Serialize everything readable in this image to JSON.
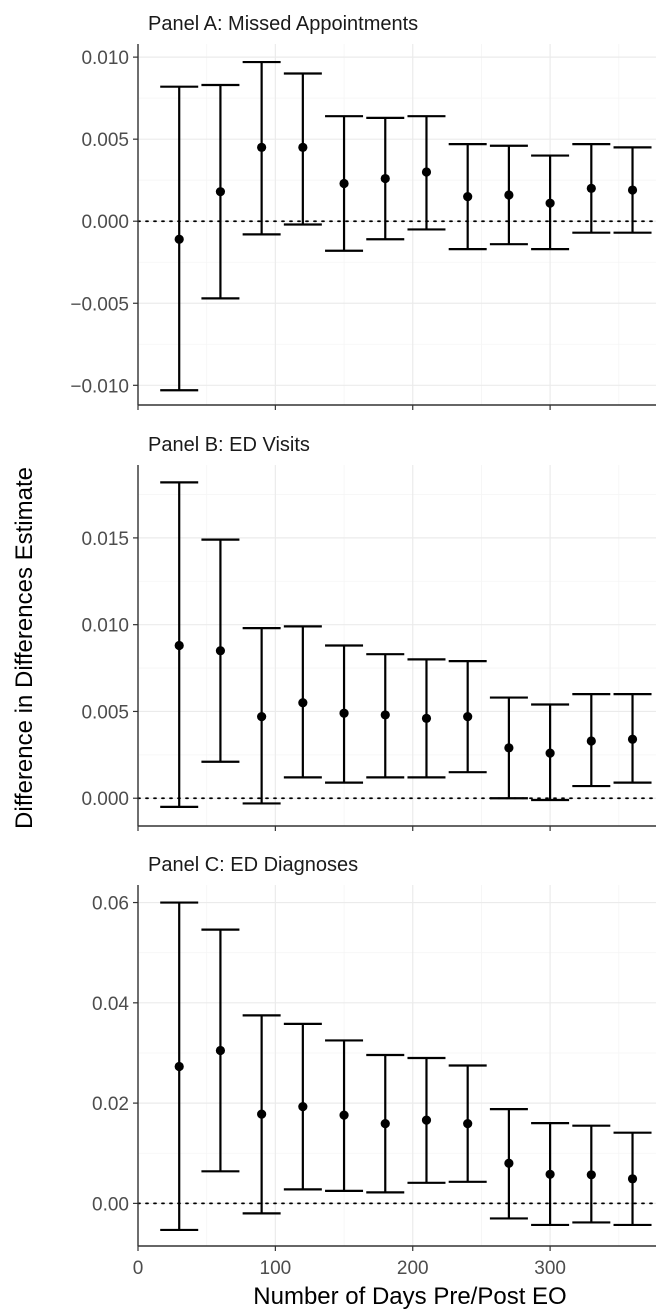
{
  "chart_data": {
    "type": "errorbar",
    "xlabel": "Number of Days Pre/Post EO",
    "ylabel": "Difference in Differences Estimate",
    "x_ticks": [
      0,
      100,
      200,
      300
    ],
    "xlim": [
      0,
      380
    ],
    "x": [
      30,
      60,
      90,
      120,
      150,
      180,
      210,
      240,
      270,
      300,
      330,
      360
    ],
    "grid": true,
    "panels": [
      {
        "title": "Panel A: Missed Appointments",
        "ylim": [
          -0.0112,
          0.0108
        ],
        "y_ticks": [
          "0.010",
          "0.005",
          "0.000",
          "−0.005",
          "−0.010"
        ],
        "y_tick_values": [
          0.01,
          0.005,
          0.0,
          -0.005,
          -0.01
        ],
        "estimate": [
          -0.0011,
          0.0018,
          0.0045,
          0.0045,
          0.0023,
          0.0026,
          0.003,
          0.0015,
          0.0016,
          0.0011,
          0.002,
          0.0019
        ],
        "lower": [
          -0.0103,
          -0.0047,
          -0.0008,
          -0.0002,
          -0.0018,
          -0.0011,
          -0.0005,
          -0.0017,
          -0.0014,
          -0.0017,
          -0.0007,
          -0.0007
        ],
        "upper": [
          0.0082,
          0.0083,
          0.0097,
          0.009,
          0.0064,
          0.0063,
          0.0064,
          0.0047,
          0.0046,
          0.004,
          0.0047,
          0.0045
        ]
      },
      {
        "title": "Panel B: ED Visits",
        "ylim": [
          -0.0016,
          0.0192
        ],
        "y_ticks": [
          "0.015",
          "0.010",
          "0.005",
          "0.000"
        ],
        "y_tick_values": [
          0.015,
          0.01,
          0.005,
          0.0
        ],
        "estimate": [
          0.0088,
          0.0085,
          0.0047,
          0.0055,
          0.0049,
          0.0048,
          0.0046,
          0.0047,
          0.0029,
          0.0026,
          0.0033,
          0.0034
        ],
        "lower": [
          -0.0005,
          0.0021,
          -0.0003,
          0.0012,
          0.0009,
          0.0012,
          0.0012,
          0.0015,
          0.0,
          -0.0001,
          0.0007,
          0.0009
        ],
        "upper": [
          0.0182,
          0.0149,
          0.0098,
          0.0099,
          0.0088,
          0.0083,
          0.008,
          0.0079,
          0.0058,
          0.0054,
          0.006,
          0.006
        ]
      },
      {
        "title": "Panel C: ED Diagnoses",
        "ylim": [
          -0.0085,
          0.0635
        ],
        "y_ticks": [
          "0.06",
          "0.04",
          "0.02",
          "0.00"
        ],
        "y_tick_values": [
          0.06,
          0.04,
          0.02,
          0.0
        ],
        "estimate": [
          0.0273,
          0.0305,
          0.0178,
          0.0193,
          0.0176,
          0.0159,
          0.0166,
          0.0159,
          0.008,
          0.0058,
          0.0057,
          0.0049
        ],
        "lower": [
          -0.0053,
          0.0064,
          -0.002,
          0.0028,
          0.0025,
          0.0022,
          0.0041,
          0.0043,
          -0.003,
          -0.0043,
          -0.0038,
          -0.0043
        ],
        "upper": [
          0.06,
          0.0546,
          0.0375,
          0.0358,
          0.0325,
          0.0296,
          0.029,
          0.0275,
          0.0188,
          0.016,
          0.0155,
          0.0141
        ]
      }
    ]
  }
}
